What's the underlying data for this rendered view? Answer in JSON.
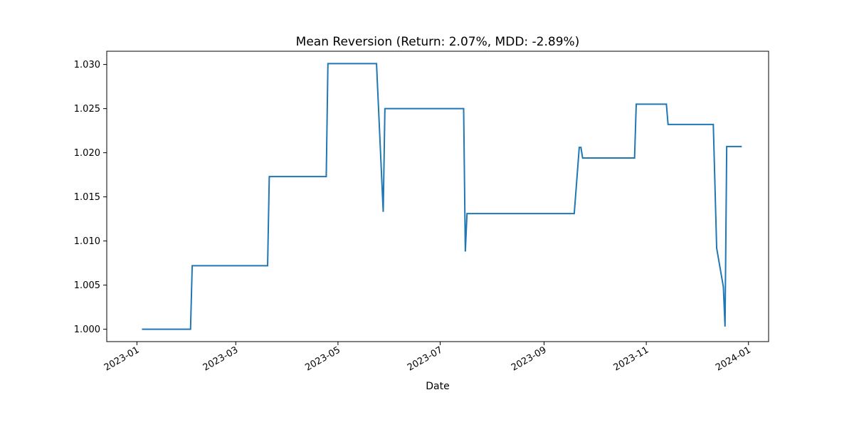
{
  "chart_data": {
    "type": "line",
    "title": "Mean Reversion (Return: 2.07%, MDD: -2.89%)",
    "xlabel": "Date",
    "ylabel": "",
    "xlim": [
      "2022-12-14",
      "2024-01-13"
    ],
    "ylim": [
      0.9986,
      1.0315
    ],
    "grid": false,
    "x_ticks": [
      "2023-01",
      "2023-03",
      "2023-05",
      "2023-07",
      "2023-09",
      "2023-11",
      "2024-01"
    ],
    "y_ticks": [
      1.0,
      1.005,
      1.01,
      1.015,
      1.02,
      1.025,
      1.03
    ],
    "y_tick_labels": [
      "1.000",
      "1.005",
      "1.010",
      "1.015",
      "1.020",
      "1.025",
      "1.030"
    ],
    "colors": {
      "series": "#1f77b4",
      "axes": "#000000",
      "background": "#ffffff"
    },
    "series": [
      {
        "x": [
          "2023-01-04",
          "2023-02-02",
          "2023-02-03",
          "2023-03-20",
          "2023-03-21",
          "2023-04-24",
          "2023-04-25",
          "2023-05-24",
          "2023-05-28",
          "2023-05-29",
          "2023-07-15",
          "2023-07-16",
          "2023-07-17",
          "2023-09-19",
          "2023-09-22",
          "2023-09-23",
          "2023-09-24",
          "2023-10-25",
          "2023-10-26",
          "2023-11-13",
          "2023-11-14",
          "2023-12-11",
          "2023-12-13",
          "2023-12-17",
          "2023-12-18",
          "2023-12-19",
          "2023-12-28"
        ],
        "values": [
          1.0,
          1.0,
          1.0072,
          1.0072,
          1.0173,
          1.0173,
          1.0301,
          1.0301,
          1.0133,
          1.025,
          1.025,
          1.0088,
          1.0131,
          1.0131,
          1.0206,
          1.0206,
          1.0194,
          1.0194,
          1.0255,
          1.0255,
          1.0232,
          1.0232,
          1.0092,
          1.0048,
          1.0003,
          1.0207,
          1.0207
        ]
      }
    ]
  }
}
